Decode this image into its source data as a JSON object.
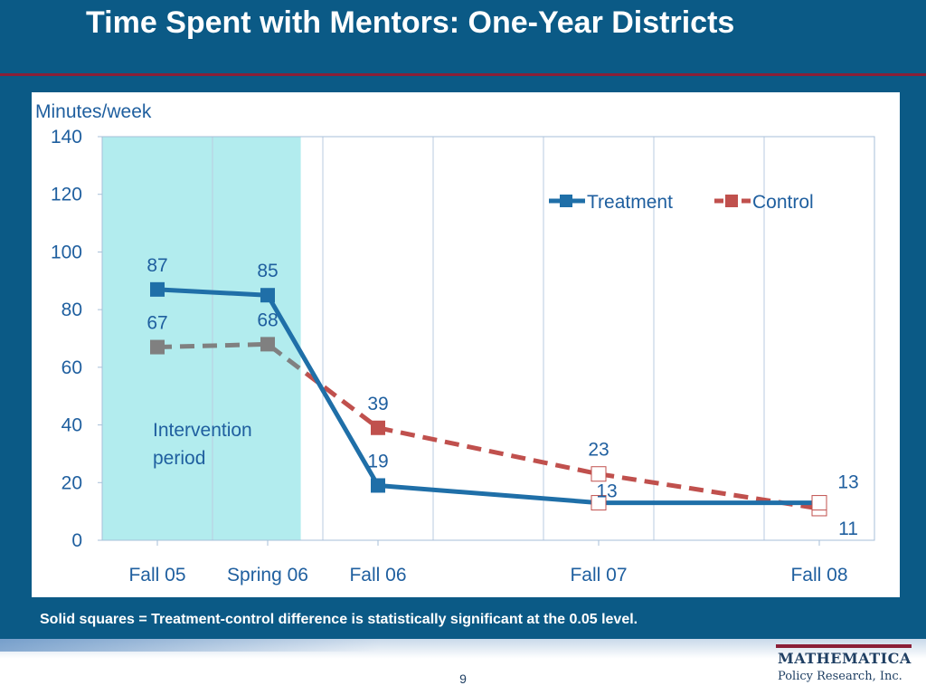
{
  "slide": {
    "title": "Time Spent with Mentors: One-Year Districts",
    "footnote": "Solid squares = Treatment-control difference is statistically significant at the 0.05 level.",
    "page_number": "9",
    "logo_line1": "MATHEMATICA",
    "logo_line2": "Policy Research, Inc."
  },
  "colors": {
    "background": "#0b5a86",
    "treatment": "#1f6fa8",
    "control": "#c0504d",
    "control_pre": "#808080",
    "shade": "#b2ecee",
    "label_text": "#1f5f9f"
  },
  "chart_data": {
    "type": "line",
    "ylabel": "Minutes/week",
    "ylim": [
      0,
      140
    ],
    "yticks": [
      0,
      20,
      40,
      60,
      80,
      100,
      120,
      140
    ],
    "categories": [
      "Fall 05",
      "Spring 06",
      "Fall 06",
      "Fall 07",
      "Fall 08"
    ],
    "x": [
      0,
      1,
      2,
      4,
      6
    ],
    "x_range": [
      -0.5,
      6.5
    ],
    "shaded_region": {
      "from": -0.5,
      "to": 1.3,
      "label": [
        "Intervention",
        "period"
      ]
    },
    "legend_position": "top-right",
    "grid": "vertical",
    "series": [
      {
        "name": "Treatment",
        "values": [
          87,
          85,
          19,
          13,
          13
        ],
        "line_style": "solid",
        "significant": [
          true,
          true,
          true,
          false,
          false
        ]
      },
      {
        "name": "Control",
        "values": [
          67,
          68,
          39,
          23,
          11
        ],
        "line_style": "dashed",
        "significant": [
          true,
          true,
          true,
          false,
          false
        ]
      }
    ]
  }
}
